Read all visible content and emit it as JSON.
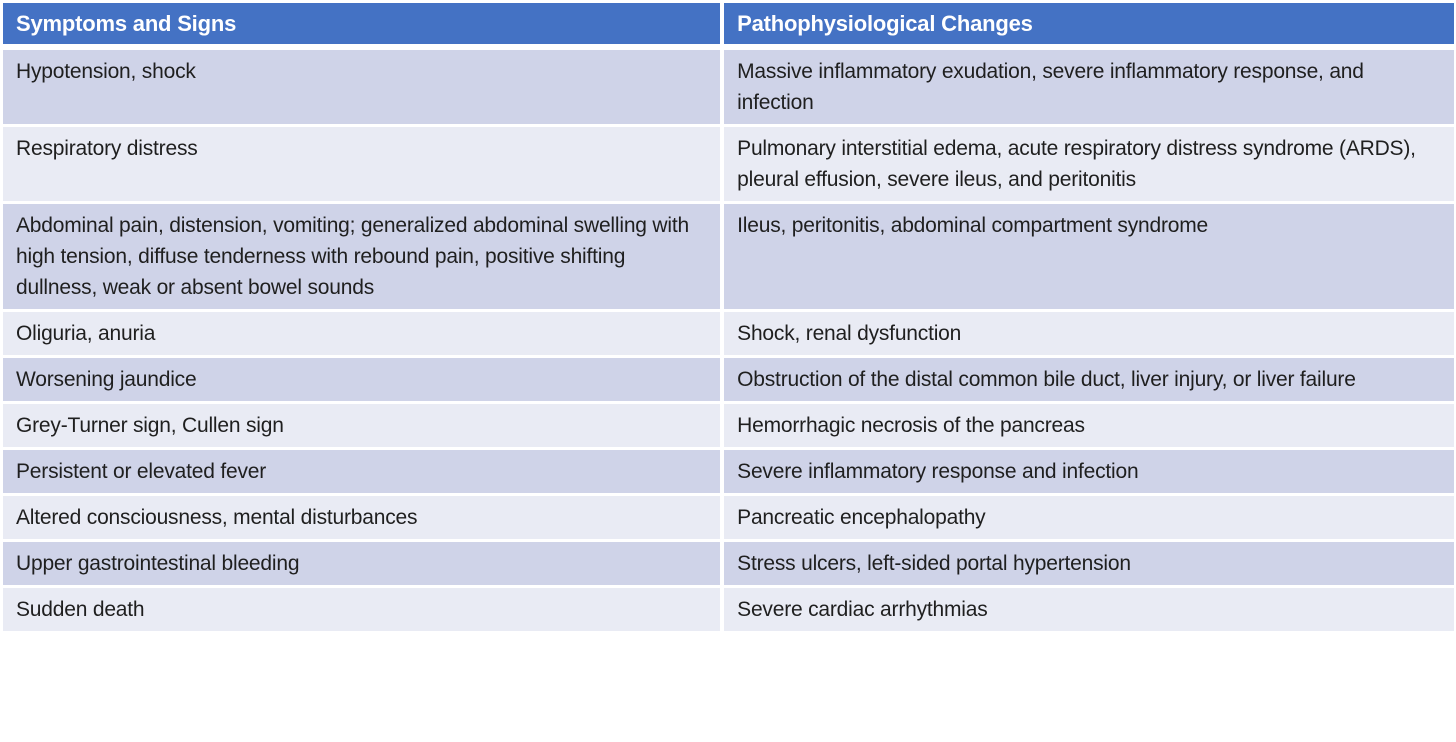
{
  "table": {
    "colors": {
      "header_bg": "#4472C4",
      "header_text": "#FFFFFF",
      "row_band_dark": "#CFD3E8",
      "row_band_light": "#E9EBF4",
      "body_text": "#1F1F1F",
      "divider": "#FFFFFF"
    },
    "columns": [
      {
        "label": "Symptoms and Signs"
      },
      {
        "label": "Pathophysiological Changes"
      }
    ],
    "rows": [
      {
        "symptoms": "Hypotension, shock",
        "changes": "Massive inflammatory exudation, severe inflammatory response, and infection"
      },
      {
        "symptoms": "Respiratory distress",
        "changes": "Pulmonary interstitial edema, acute respiratory distress syndrome (ARDS), pleural effusion, severe ileus, and peritonitis"
      },
      {
        "symptoms": "Abdominal pain, distension, vomiting; generalized abdominal swelling with high tension, diffuse tenderness with rebound pain, positive shifting dullness, weak or absent bowel sounds",
        "changes": "Ileus, peritonitis, abdominal compartment syndrome"
      },
      {
        "symptoms": "Oliguria, anuria",
        "changes": "Shock, renal dysfunction"
      },
      {
        "symptoms": "Worsening jaundice",
        "changes": "Obstruction of the distal common bile duct, liver injury, or liver failure"
      },
      {
        "symptoms": "Grey-Turner sign, Cullen sign",
        "changes": "Hemorrhagic necrosis of the pancreas"
      },
      {
        "symptoms": "Persistent or elevated fever",
        "changes": "Severe inflammatory response and infection"
      },
      {
        "symptoms": "Altered consciousness, mental disturbances",
        "changes": "Pancreatic encephalopathy"
      },
      {
        "symptoms": "Upper gastrointestinal bleeding",
        "changes": "Stress ulcers, left-sided portal hypertension"
      },
      {
        "symptoms": "Sudden death",
        "changes": "Severe cardiac arrhythmias"
      }
    ]
  }
}
